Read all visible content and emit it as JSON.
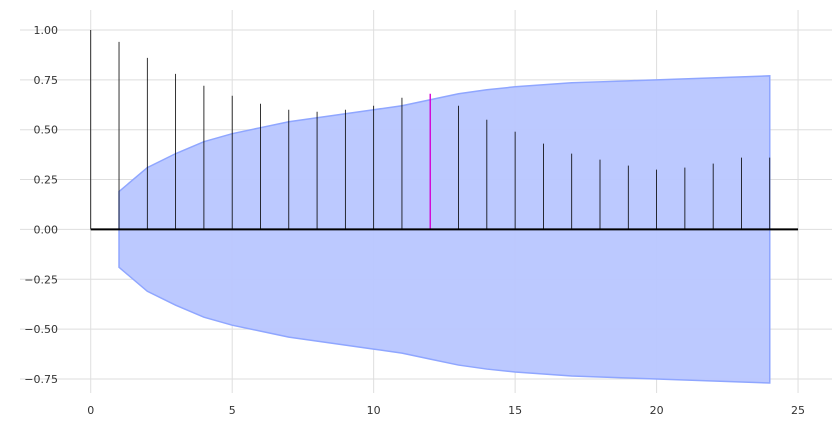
{
  "chart_data": {
    "type": "stem",
    "title": "",
    "xlabel": "",
    "ylabel": "",
    "xlim": [
      -2.5,
      26.2
    ],
    "ylim": [
      -0.82,
      1.1
    ],
    "x_ticks": [
      0,
      5,
      10,
      15,
      20,
      25
    ],
    "x_tick_labels": [
      "0",
      "5",
      "10",
      "15",
      "20",
      "25"
    ],
    "y_ticks": [
      1.0,
      0.75,
      0.5,
      0.25,
      0.0,
      -0.25,
      -0.5,
      -0.75
    ],
    "y_tick_labels": [
      "1.00",
      "0.75",
      "0.50",
      "0.25",
      "0.00",
      "−0.25",
      "−0.50",
      "−0.75"
    ],
    "grid": true,
    "lags": [
      0,
      1,
      2,
      3,
      4,
      5,
      6,
      7,
      8,
      9,
      10,
      11,
      12,
      13,
      14,
      15,
      16,
      17,
      18,
      19,
      20,
      21,
      22,
      23,
      24
    ],
    "values": [
      1.0,
      0.94,
      0.86,
      0.78,
      0.72,
      0.67,
      0.63,
      0.6,
      0.59,
      0.6,
      0.62,
      0.66,
      0.68,
      0.62,
      0.55,
      0.49,
      0.43,
      0.38,
      0.35,
      0.32,
      0.3,
      0.31,
      0.33,
      0.36,
      0.36
    ],
    "highlight_lag": 12,
    "confidence_band": {
      "lags": [
        1,
        2,
        3,
        4,
        5,
        6,
        7,
        8,
        9,
        10,
        11,
        12,
        13,
        14,
        15,
        16,
        17,
        18,
        19,
        20,
        21,
        22,
        23,
        24
      ],
      "upper": [
        0.19,
        0.31,
        0.38,
        0.44,
        0.48,
        0.51,
        0.54,
        0.56,
        0.58,
        0.6,
        0.62,
        0.65,
        0.68,
        0.7,
        0.715,
        0.725,
        0.735,
        0.74,
        0.745,
        0.75,
        0.755,
        0.76,
        0.765,
        0.77
      ],
      "lower": [
        -0.19,
        -0.31,
        -0.38,
        -0.44,
        -0.48,
        -0.51,
        -0.54,
        -0.56,
        -0.58,
        -0.6,
        -0.62,
        -0.65,
        -0.68,
        -0.7,
        -0.715,
        -0.725,
        -0.735,
        -0.74,
        -0.745,
        -0.75,
        -0.755,
        -0.76,
        -0.765,
        -0.77
      ]
    },
    "zero_line_range": [
      0,
      25
    ],
    "colors": {
      "stem": "#000000",
      "highlight_stem": "#d400d4",
      "band_fill": "#b8c6ff",
      "band_edge": "#8fa6ff",
      "grid": "#dedede",
      "zero_line": "#000000"
    }
  }
}
